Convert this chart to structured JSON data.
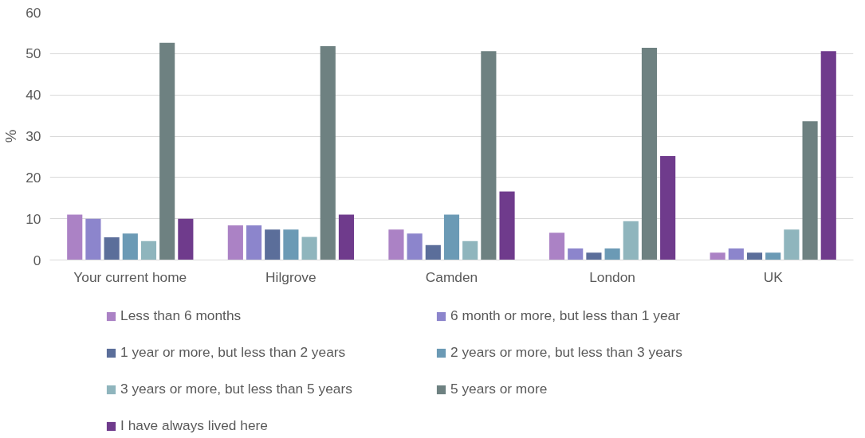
{
  "chart_data": {
    "type": "bar",
    "ylabel": "%",
    "categories": [
      "Your current home",
      "Hilgrove",
      "Camden",
      "London",
      "UK"
    ],
    "ylim": [
      0,
      60
    ],
    "yticks": [
      0,
      10,
      20,
      30,
      40,
      50,
      60
    ],
    "grid": "y",
    "legend": "bottom",
    "series": [
      {
        "name": "Less than 6 months",
        "color": "#ab82c5",
        "values": [
          11,
          8.4,
          7.4,
          6.6,
          1.8
        ]
      },
      {
        "name": "6 month or more, but less than 1 year",
        "color": "#8c85cc",
        "values": [
          10,
          8.4,
          6.4,
          2.8,
          2.8
        ]
      },
      {
        "name": "1 year or more, but less than 2 years",
        "color": "#5b6e9a",
        "values": [
          5.5,
          7.4,
          3.6,
          1.8,
          1.8
        ]
      },
      {
        "name": "2 years or more, but less than 3 years",
        "color": "#6b9ab5",
        "values": [
          6.4,
          7.4,
          11,
          2.8,
          1.8
        ]
      },
      {
        "name": "3 years or more, but less than 5 years",
        "color": "#8fb5bd",
        "values": [
          4.6,
          5.6,
          4.6,
          9.4,
          7.4
        ]
      },
      {
        "name": "5 years or more",
        "color": "#6e8181",
        "values": [
          52.6,
          51.8,
          50.6,
          51.4,
          33.6
        ]
      },
      {
        "name": "I have always lived here",
        "color": "#6f3b8c",
        "values": [
          10,
          11,
          16.6,
          25.2,
          50.6
        ]
      }
    ]
  }
}
